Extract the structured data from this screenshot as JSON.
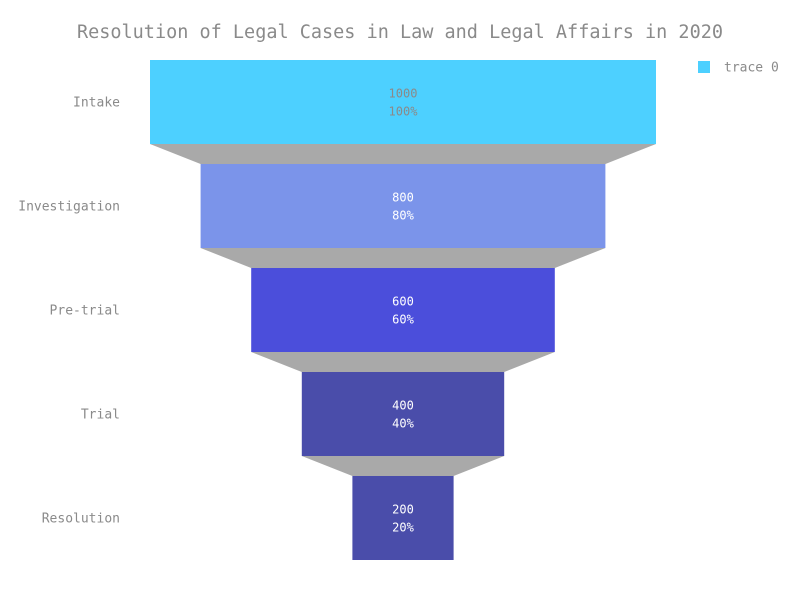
{
  "chart_data": {
    "type": "funnel",
    "title": "Resolution of Legal Cases in Law and Legal Affairs in 2020",
    "categories": [
      "Intake",
      "Investigation",
      "Pre-trial",
      "Trial",
      "Resolution"
    ],
    "series": [
      {
        "name": "trace 0",
        "values": [
          1000,
          800,
          600,
          400,
          200
        ],
        "percent_labels": [
          "100%",
          "80%",
          "60%",
          "40%",
          "20%"
        ],
        "value_labels": [
          "1000",
          "800",
          "600",
          "400",
          "200"
        ]
      }
    ],
    "colors": [
      "#4dd0ff",
      "#7b94ea",
      "#4b4edb",
      "#4a4daa",
      "#4a4daa"
    ],
    "connector_color": "#a9a9a9",
    "label_colors": [
      "#8a8a8a",
      "#ffffff",
      "#ffffff",
      "#ffffff",
      "#ffffff"
    ],
    "legend": {
      "position": "top-right",
      "swatch_color": "#4dd0ff"
    }
  }
}
